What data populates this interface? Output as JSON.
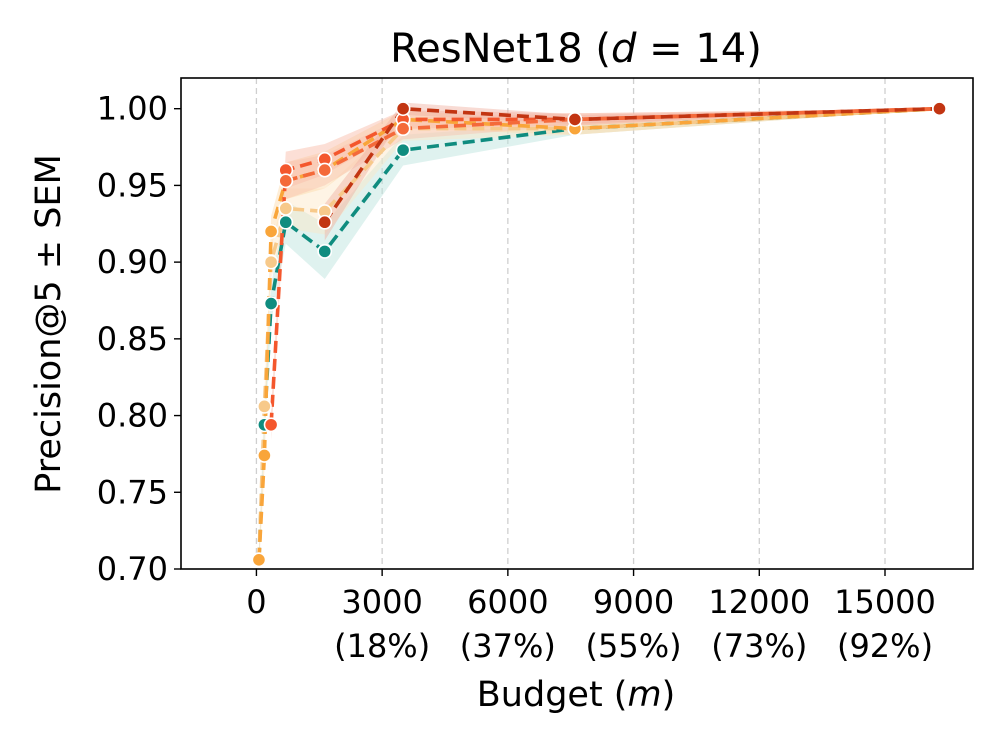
{
  "chart_data": {
    "type": "line",
    "title": "ResNet18 (d = 14)",
    "title_parts": [
      "ResNet18 (",
      "d",
      " = 14)"
    ],
    "xlabel": "Budget (m)",
    "xlabel_parts": [
      "Budget (",
      "m",
      ")"
    ],
    "ylabel": "Precision@5 ± SEM",
    "xlim": [
      -1800,
      17100
    ],
    "ylim": [
      0.7,
      1.02
    ],
    "grid": "vertical dashed",
    "x_ticks": [
      {
        "value": 0,
        "label": "0",
        "sub": ""
      },
      {
        "value": 3000,
        "label": "3000",
        "sub": "(18%)"
      },
      {
        "value": 6000,
        "label": "6000",
        "sub": "(37%)"
      },
      {
        "value": 9000,
        "label": "9000",
        "sub": "(55%)"
      },
      {
        "value": 12000,
        "label": "12000",
        "sub": "(73%)"
      },
      {
        "value": 15000,
        "label": "15000",
        "sub": "(92%)"
      }
    ],
    "y_ticks": [
      {
        "value": 0.7,
        "label": "0.70"
      },
      {
        "value": 0.75,
        "label": "0.75"
      },
      {
        "value": 0.8,
        "label": "0.80"
      },
      {
        "value": 0.85,
        "label": "0.85"
      },
      {
        "value": 0.9,
        "label": "0.90"
      },
      {
        "value": 0.95,
        "label": "0.95"
      },
      {
        "value": 1.0,
        "label": "1.00"
      }
    ],
    "series": [
      {
        "name": "series-1",
        "color": "#0f8c7f",
        "band": "#b7e3dc",
        "x": [
          60,
          190,
          350,
          700,
          1630,
          3500,
          7600,
          16300
        ],
        "y": [
          0.706,
          0.794,
          0.873,
          0.926,
          0.907,
          0.973,
          0.987,
          1.0
        ],
        "sem": [
          0.006,
          0.01,
          0.012,
          0.014,
          0.018,
          0.01,
          0.004,
          0.0
        ]
      },
      {
        "name": "series-2",
        "color": "#f7c98a",
        "band": "#fce6c6",
        "x": [
          60,
          190,
          350,
          700,
          1630,
          3500,
          7600,
          16300
        ],
        "y": [
          0.706,
          0.806,
          0.9,
          0.935,
          0.933,
          0.987,
          0.987,
          1.0
        ],
        "sem": [
          0.006,
          0.01,
          0.011,
          0.013,
          0.015,
          0.008,
          0.004,
          0.0
        ]
      },
      {
        "name": "series-3",
        "color": "#f9a53a",
        "band": "#fdd9a8",
        "x": [
          60,
          190,
          350,
          700,
          1630,
          3500,
          7600,
          16300
        ],
        "y": [
          0.706,
          0.774,
          0.92,
          0.953,
          0.96,
          0.993,
          0.987,
          1.0
        ],
        "sem": [
          0.006,
          0.01,
          0.01,
          0.012,
          0.012,
          0.006,
          0.004,
          0.0
        ]
      },
      {
        "name": "series-4",
        "color": "#f4572d",
        "band": "#f9b8a3",
        "x": [
          350,
          700,
          1630,
          3500,
          7600,
          16300
        ],
        "y": [
          0.794,
          0.96,
          0.967,
          0.993,
          0.993,
          1.0
        ],
        "sem": [
          0.01,
          0.012,
          0.01,
          0.006,
          0.004,
          0.0
        ]
      },
      {
        "name": "series-5",
        "color": "#f46a3a",
        "band": "#f9c2ae",
        "x": [
          700,
          1630,
          3500,
          7600,
          16300
        ],
        "y": [
          0.953,
          0.96,
          0.987,
          0.993,
          1.0
        ],
        "sem": [
          0.012,
          0.01,
          0.007,
          0.004,
          0.0
        ]
      },
      {
        "name": "series-6",
        "color": "#c23512",
        "band": "#efb0a0",
        "x": [
          1630,
          3500,
          7600,
          16300
        ],
        "y": [
          0.926,
          1.0,
          0.993,
          1.0
        ],
        "sem": [
          0.012,
          0.004,
          0.003,
          0.0
        ]
      }
    ]
  }
}
